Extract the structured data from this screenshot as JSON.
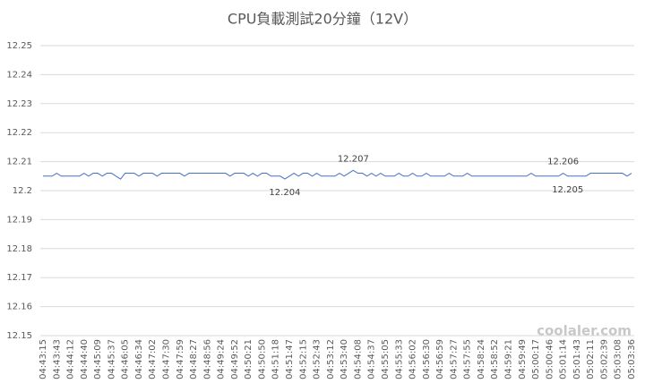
{
  "chart_data": {
    "type": "line",
    "title": "CPU負載測試20分鐘（12V）",
    "watermark": "coolaler.com",
    "categories": [
      "04:43:15",
      null,
      null,
      "04:43:43",
      null,
      null,
      "04:44:12",
      null,
      null,
      "04:44:40",
      null,
      null,
      "04:45:09",
      null,
      null,
      "04:45:37",
      null,
      null,
      "04:46:05",
      null,
      null,
      "04:46:34",
      null,
      null,
      "04:47:02",
      null,
      null,
      "04:47:30",
      null,
      null,
      "04:47:59",
      null,
      null,
      "04:48:27",
      null,
      null,
      "04:48:56",
      null,
      null,
      "04:49:24",
      null,
      null,
      "04:49:52",
      null,
      null,
      "04:50:21",
      null,
      null,
      "04:50:50",
      null,
      null,
      "04:51:18",
      null,
      null,
      "04:51:47",
      null,
      null,
      "04:52:15",
      null,
      null,
      "04:52:43",
      null,
      null,
      "04:53:12",
      null,
      null,
      "04:53:40",
      null,
      null,
      "04:54:08",
      null,
      null,
      "04:54:37",
      null,
      null,
      "04:55:05",
      null,
      null,
      "04:55:33",
      null,
      null,
      "04:56:02",
      null,
      null,
      "04:56:30",
      null,
      null,
      "04:56:59",
      null,
      null,
      "04:57:27",
      null,
      null,
      "04:57:55",
      null,
      null,
      "04:58:24",
      null,
      null,
      "04:58:52",
      null,
      null,
      "04:59:21",
      null,
      null,
      "04:59:49",
      null,
      null,
      "05:00:17",
      null,
      null,
      "05:00:46",
      null,
      null,
      "05:01:14",
      null,
      null,
      "05:01:43",
      null,
      null,
      "05:02:11",
      null,
      null,
      "05:02:39",
      null,
      null,
      "05:03:08",
      null,
      null,
      "05:03:36"
    ],
    "values": [
      12.205,
      12.205,
      12.205,
      12.206,
      12.205,
      12.205,
      12.205,
      12.205,
      12.205,
      12.206,
      12.205,
      12.206,
      12.206,
      12.205,
      12.206,
      12.206,
      12.205,
      12.204,
      12.206,
      12.206,
      12.206,
      12.205,
      12.206,
      12.206,
      12.206,
      12.205,
      12.206,
      12.206,
      12.206,
      12.206,
      12.206,
      12.205,
      12.206,
      12.206,
      12.206,
      12.206,
      12.206,
      12.206,
      12.206,
      12.206,
      12.206,
      12.205,
      12.206,
      12.206,
      12.206,
      12.205,
      12.206,
      12.205,
      12.206,
      12.206,
      12.205,
      12.205,
      12.205,
      12.204,
      12.205,
      12.206,
      12.205,
      12.206,
      12.206,
      12.205,
      12.206,
      12.205,
      12.205,
      12.205,
      12.205,
      12.206,
      12.205,
      12.206,
      12.207,
      12.206,
      12.206,
      12.205,
      12.206,
      12.205,
      12.206,
      12.205,
      12.205,
      12.205,
      12.206,
      12.205,
      12.205,
      12.206,
      12.205,
      12.205,
      12.206,
      12.205,
      12.205,
      12.205,
      12.205,
      12.206,
      12.205,
      12.205,
      12.205,
      12.206,
      12.205,
      12.205,
      12.205,
      12.205,
      12.205,
      12.205,
      12.205,
      12.205,
      12.205,
      12.205,
      12.205,
      12.205,
      12.205,
      12.206,
      12.205,
      12.205,
      12.205,
      12.205,
      12.205,
      12.205,
      12.206,
      12.205,
      12.205,
      12.205,
      12.205,
      12.205,
      12.206,
      12.206,
      12.206,
      12.206,
      12.206,
      12.206,
      12.206,
      12.206,
      12.205,
      12.206
    ],
    "value_labels": [
      null,
      null,
      null,
      null,
      null,
      null,
      null,
      null,
      null,
      null,
      null,
      null,
      null,
      null,
      null,
      null,
      null,
      null,
      null,
      null,
      null,
      null,
      null,
      null,
      null,
      null,
      null,
      null,
      null,
      null,
      null,
      null,
      null,
      null,
      null,
      null,
      null,
      null,
      null,
      null,
      null,
      null,
      null,
      null,
      null,
      null,
      null,
      null,
      null,
      null,
      null,
      null,
      null,
      "12.204",
      null,
      null,
      null,
      null,
      null,
      null,
      null,
      null,
      null,
      null,
      null,
      null,
      null,
      null,
      "12.207",
      null,
      null,
      null,
      null,
      null,
      null,
      null,
      null,
      null,
      null,
      null,
      null,
      null,
      null,
      null,
      null,
      null,
      null,
      null,
      null,
      null,
      null,
      null,
      null,
      null,
      null,
      null,
      null,
      null,
      null,
      null,
      null,
      null,
      null,
      null,
      null,
      null,
      null,
      null,
      null,
      null,
      null,
      null,
      null,
      null,
      "12.206",
      "12.205",
      null,
      null,
      null,
      null,
      null,
      null,
      null,
      null,
      null,
      null,
      null,
      null,
      null,
      null
    ],
    "color": "#4472c4",
    "ylim": [
      12.15,
      12.25
    ],
    "yticks": [
      12.15,
      12.16,
      12.17,
      12.18,
      12.19,
      12.2,
      12.21,
      12.22,
      12.23,
      12.24,
      12.25
    ],
    "grid": true
  }
}
